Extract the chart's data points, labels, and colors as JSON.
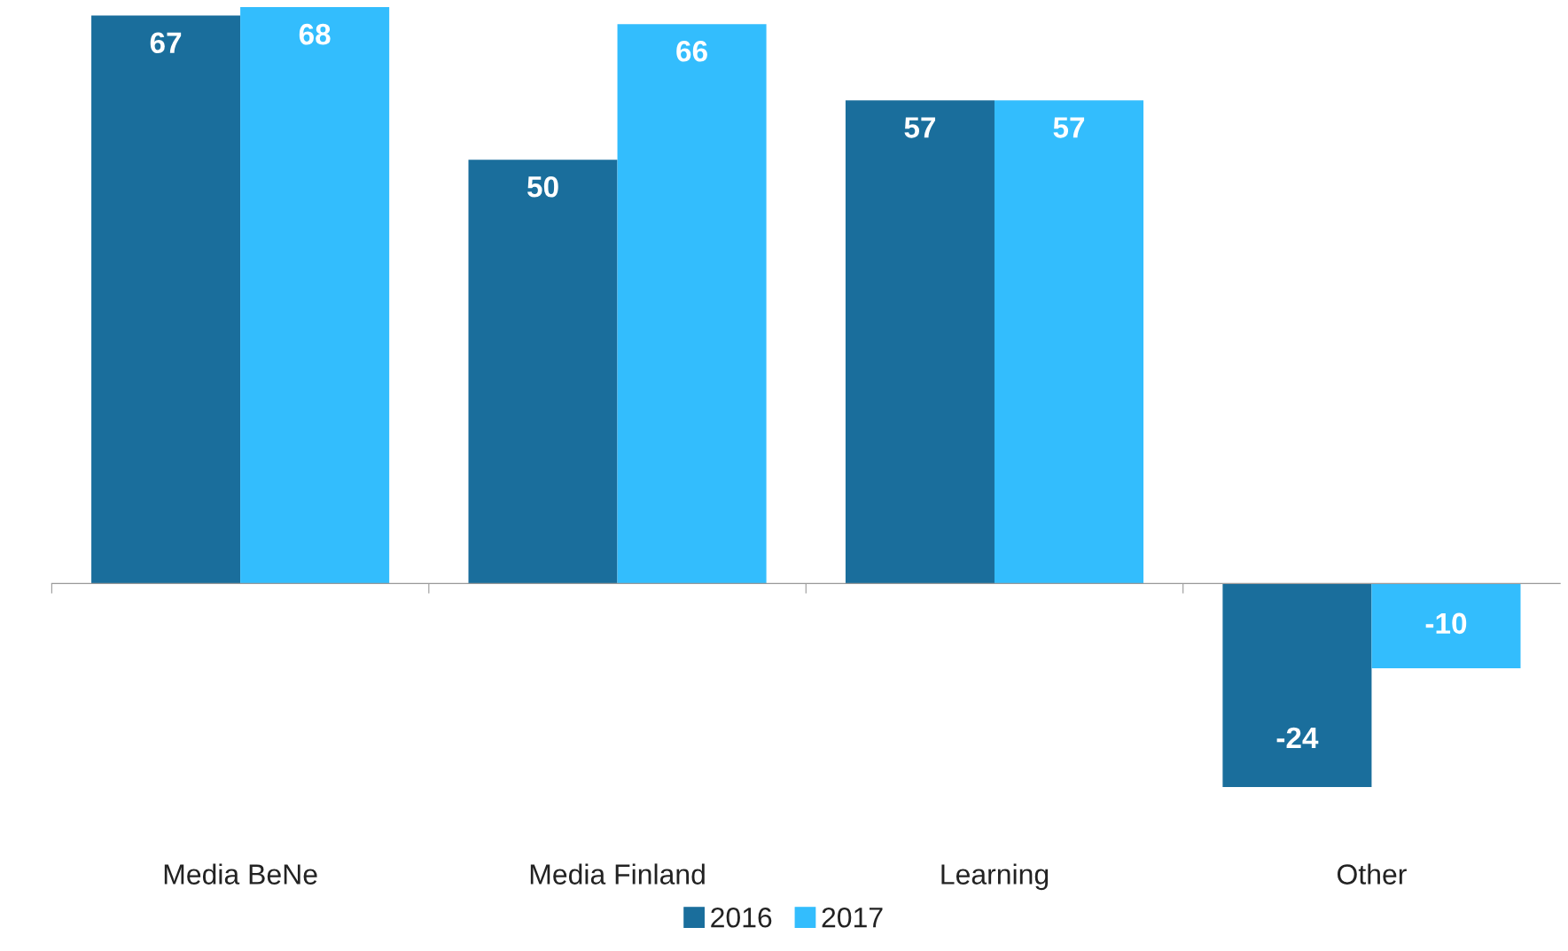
{
  "chart_data": {
    "type": "bar",
    "categories": [
      "Media BeNe",
      "Media Finland",
      "Learning",
      "Other"
    ],
    "series": [
      {
        "name": "2016",
        "color": "#1a6e9c",
        "values": [
          67,
          50,
          57,
          -24
        ]
      },
      {
        "name": "2017",
        "color": "#33bdfd",
        "values": [
          68,
          66,
          57,
          -10
        ]
      }
    ],
    "data_labels": true,
    "legend": "bottom",
    "grid": false
  }
}
